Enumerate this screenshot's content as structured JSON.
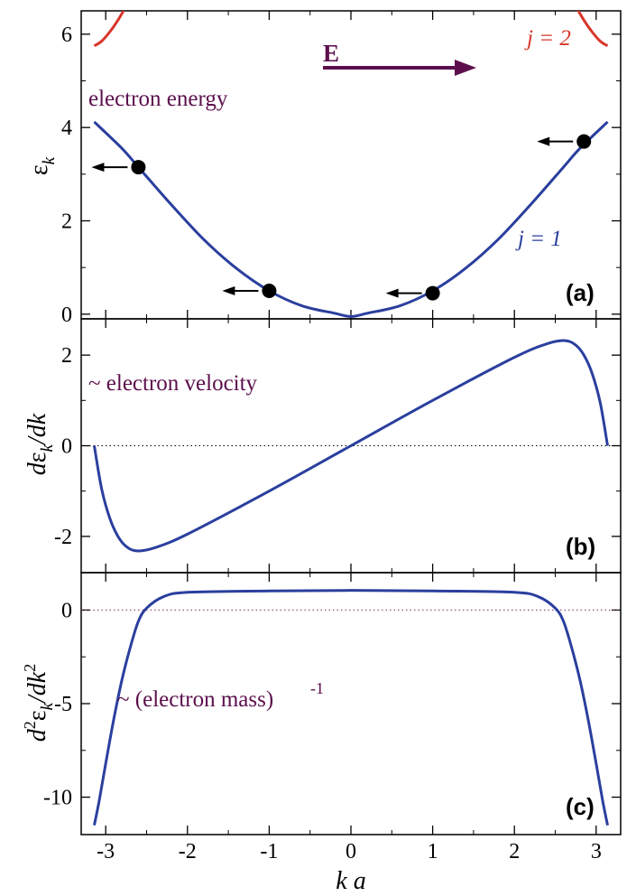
{
  "chart_data": [
    {
      "type": "line",
      "panel_label": "(a)",
      "ylabel": "ε_k",
      "ylim": [
        -0.1,
        6.5
      ],
      "xlim": [
        -3.3,
        3.3
      ],
      "yticks": [
        0,
        2,
        4,
        6
      ],
      "yticklabels": [
        "0",
        "2",
        "4",
        "6"
      ],
      "series": [
        {
          "name": "j = 1",
          "color": "#2a3f9e",
          "x": [
            -3.14,
            -2.8,
            -2.6,
            -2.2,
            -1.8,
            -1.4,
            -1.0,
            -0.6,
            -0.2,
            0.0,
            0.2,
            0.6,
            1.0,
            1.4,
            1.8,
            2.2,
            2.6,
            2.8,
            3.14
          ],
          "y": [
            4.12,
            3.55,
            3.15,
            2.35,
            1.6,
            0.98,
            0.5,
            0.18,
            0.02,
            -0.05,
            0.02,
            0.18,
            0.5,
            0.98,
            1.6,
            2.35,
            3.15,
            3.55,
            4.12
          ]
        },
        {
          "name": "j = 2",
          "color": "#d8362a",
          "x": [
            -3.14,
            -3.05,
            -2.95,
            -2.85,
            -2.75
          ],
          "y": [
            5.75,
            5.85,
            6.05,
            6.3,
            6.6
          ]
        },
        {
          "name": "j = 2",
          "color": "#d8362a",
          "x": [
            2.75,
            2.85,
            2.95,
            3.05,
            3.14
          ],
          "y": [
            6.6,
            6.3,
            6.05,
            5.85,
            5.75
          ]
        }
      ],
      "points": [
        {
          "x": -2.6,
          "y": 3.15
        },
        {
          "x": -1.0,
          "y": 0.5
        },
        {
          "x": 1.0,
          "y": 0.45
        },
        {
          "x": 2.85,
          "y": 3.7
        }
      ],
      "annotations": {
        "field_label": "E",
        "energy_label": "electron energy",
        "band1_label": "j = 1",
        "band2_label": "j = 2"
      }
    },
    {
      "type": "line",
      "panel_label": "(b)",
      "ylabel": "dε_k/dk",
      "ylim": [
        -2.8,
        2.8
      ],
      "xlim": [
        -3.3,
        3.3
      ],
      "yticks": [
        -2,
        0,
        2
      ],
      "yticklabels": [
        "-2",
        "0",
        "2"
      ],
      "series": [
        {
          "name": "",
          "color": "#2a3f9e",
          "x": [
            -3.14,
            -3.05,
            -2.95,
            -2.85,
            -2.75,
            -2.62,
            -2.4,
            -2.0,
            -1.0,
            0.0,
            1.0,
            2.0,
            2.4,
            2.62,
            2.75,
            2.85,
            2.95,
            3.05,
            3.14
          ],
          "y": [
            0.0,
            -0.95,
            -1.6,
            -2.0,
            -2.22,
            -2.32,
            -2.25,
            -1.95,
            -1.0,
            0.0,
            1.0,
            1.95,
            2.25,
            2.32,
            2.22,
            2.0,
            1.6,
            0.95,
            0.0
          ]
        }
      ],
      "zero_line": true,
      "annotations": {
        "velocity_label": "~ electron velocity"
      }
    },
    {
      "type": "line",
      "panel_label": "(c)",
      "ylabel": "d²ε_k/dk²",
      "ylim": [
        -12,
        2
      ],
      "xlim": [
        -3.3,
        3.3
      ],
      "yticks": [
        -10,
        -5,
        0
      ],
      "yticklabels": [
        "-10",
        "-5",
        "0"
      ],
      "series": [
        {
          "name": "",
          "color": "#2a3f9e",
          "x": [
            -3.14,
            -3.08,
            -3.0,
            -2.9,
            -2.8,
            -2.7,
            -2.6,
            -2.5,
            -2.3,
            -2.0,
            -1.0,
            0.0,
            1.0,
            2.0,
            2.3,
            2.5,
            2.6,
            2.7,
            2.8,
            2.9,
            3.0,
            3.08,
            3.14
          ],
          "y": [
            -11.5,
            -10.2,
            -8.2,
            -5.8,
            -3.7,
            -2.0,
            -0.6,
            0.1,
            0.7,
            0.95,
            1.02,
            1.05,
            1.02,
            0.95,
            0.7,
            0.1,
            -0.6,
            -2.0,
            -3.7,
            -5.8,
            -8.2,
            -10.2,
            -11.5
          ]
        }
      ],
      "zero_line": true,
      "annotations": {
        "mass_label": "~ (electron mass)",
        "mass_exponent": "-1"
      }
    }
  ],
  "xaxis": {
    "xlabel": "k a",
    "xticks": [
      -3,
      -2,
      -1,
      0,
      1,
      2,
      3
    ],
    "xticklabels": [
      "-3",
      "-2",
      "-1",
      "0",
      "1",
      "2",
      "3"
    ]
  },
  "colors": {
    "band1": "#2a3f9e",
    "band2": "#d8362a",
    "annotation": "#5c0f4c",
    "arrow": "#5c0f4c"
  }
}
